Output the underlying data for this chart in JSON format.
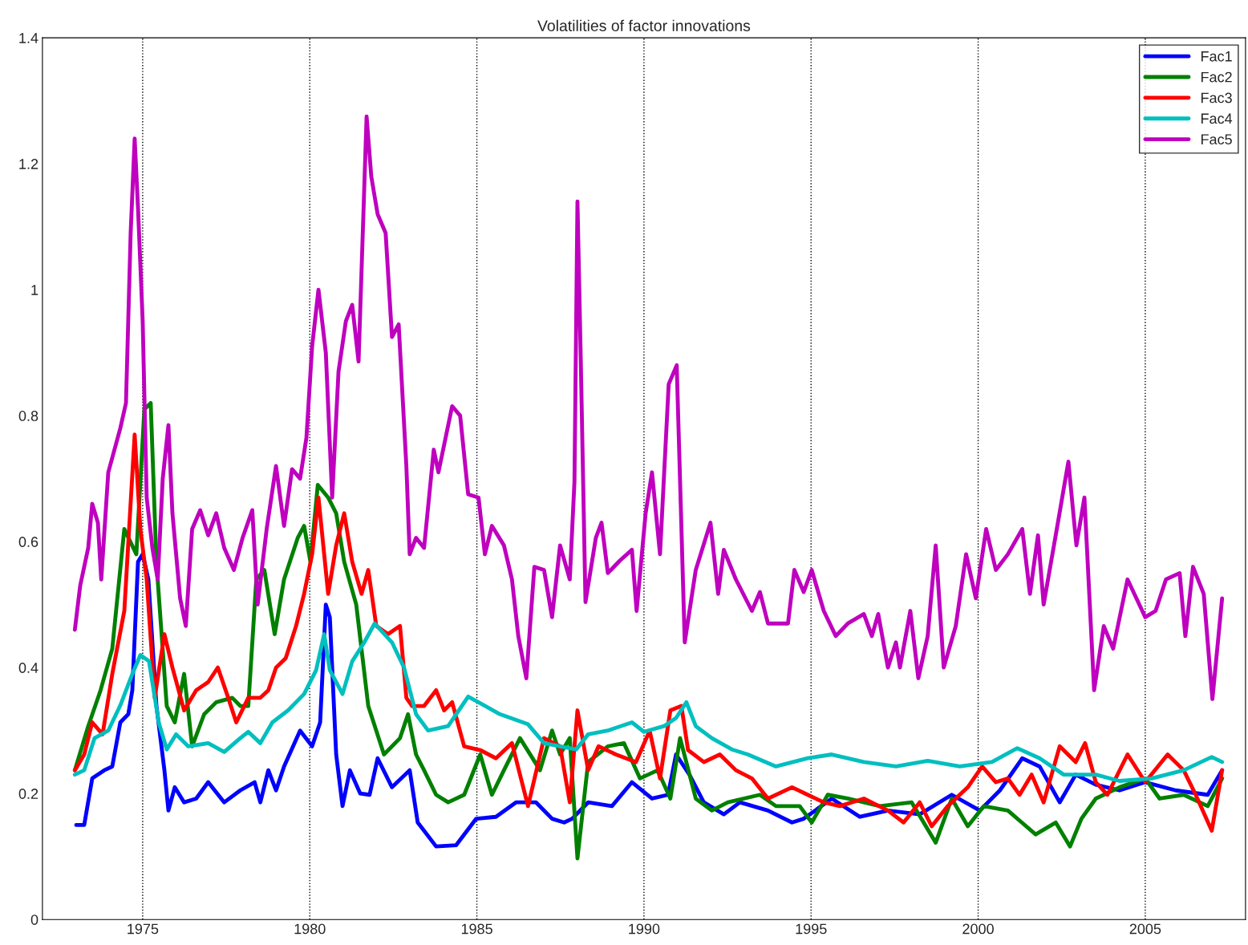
{
  "chart_data": {
    "type": "line",
    "title": "Volatilities of factor innovations",
    "xlim": [
      1972,
      2008
    ],
    "xticks": [
      1975,
      1980,
      1985,
      1990,
      1995,
      2000,
      2005
    ],
    "ylim": [
      0,
      1.4
    ],
    "yticks": [
      0,
      0.2,
      0.4,
      0.6,
      0.8,
      1,
      1.2,
      1.4
    ],
    "grid": "x",
    "legend": "top right",
    "series": [
      {
        "name": "Fac1",
        "color": "#0000ff",
        "x": [
          1973.01,
          1973.25,
          1973.49,
          1973.85,
          1974.09,
          1974.33,
          1974.57,
          1974.69,
          1974.86,
          1975.0,
          1975.17,
          1975.41,
          1975.65,
          1975.77,
          1975.96,
          1976.24,
          1976.6,
          1976.96,
          1977.44,
          1977.92,
          1978.35,
          1978.52,
          1978.76,
          1978.99,
          1979.23,
          1979.71,
          1980.07,
          1980.31,
          1980.48,
          1980.6,
          1980.79,
          1980.98,
          1981.2,
          1981.51,
          1981.79,
          1982.03,
          1982.46,
          1982.99,
          1983.23,
          1983.78,
          1984.38,
          1984.98,
          1985.57,
          1986.17,
          1986.77,
          1987.25,
          1987.61,
          1987.85,
          1988.01,
          1988.33,
          1989.04,
          1989.64,
          1990.24,
          1990.72,
          1990.96,
          1991.12,
          1991.36,
          1991.79,
          1992.39,
          1992.87,
          1993.71,
          1994.43,
          1994.78,
          1995.62,
          1996.46,
          1997.3,
          1998.25,
          1999.21,
          2000.05,
          2000.65,
          2001.32,
          2001.84,
          2002.44,
          2002.92,
          2003.52,
          2004.23,
          2005.0,
          2005.91,
          2006.87,
          2007.3
        ],
        "values": [
          0.15,
          0.15,
          0.224,
          0.237,
          0.243,
          0.313,
          0.326,
          0.364,
          0.568,
          0.58,
          0.54,
          0.34,
          0.237,
          0.173,
          0.21,
          0.186,
          0.192,
          0.218,
          0.186,
          0.205,
          0.218,
          0.186,
          0.237,
          0.205,
          0.243,
          0.3,
          0.275,
          0.313,
          0.5,
          0.48,
          0.262,
          0.18,
          0.237,
          0.2,
          0.198,
          0.256,
          0.21,
          0.237,
          0.154,
          0.116,
          0.118,
          0.16,
          0.163,
          0.186,
          0.186,
          0.16,
          0.154,
          0.16,
          null,
          0.186,
          0.18,
          0.218,
          0.192,
          0.198,
          0.262,
          null,
          0.23,
          0.186,
          0.167,
          0.186,
          0.173,
          0.154,
          0.16,
          0.192,
          0.163,
          0.173,
          0.167,
          0.198,
          0.173,
          0.205,
          0.256,
          0.243,
          0.186,
          0.23,
          0.214,
          0.205,
          0.218,
          0.205,
          0.198,
          0.237
        ]
      },
      {
        "name": "Fac2",
        "color": "#008000",
        "x": [
          1972.97,
          1973.37,
          1973.74,
          1974.09,
          1974.45,
          1974.81,
          1975.05,
          1975.24,
          1975.41,
          1975.72,
          1975.96,
          1976.24,
          1976.48,
          1976.84,
          1977.2,
          1977.68,
          1977.92,
          1978.16,
          1978.4,
          1978.64,
          1978.95,
          1979.23,
          1979.64,
          1979.83,
          1980.02,
          1980.24,
          1980.55,
          1980.79,
          1981.03,
          1981.39,
          1981.75,
          1982.22,
          1982.7,
          1982.94,
          1983.18,
          1983.42,
          1983.78,
          1984.14,
          1984.62,
          1985.1,
          1985.45,
          1985.81,
          1986.29,
          1986.89,
          1987.25,
          1987.49,
          1987.78,
          1988.01,
          1988.33,
          1988.92,
          1989.4,
          1989.88,
          1990.41,
          1990.79,
          1991.08,
          1991.55,
          1992.03,
          1992.51,
          1993.47,
          1993.95,
          1994.66,
          1995.02,
          1995.5,
          1996.1,
          1997.06,
          1998.01,
          1998.73,
          1999.21,
          1999.69,
          2000.17,
          2000.89,
          2001.72,
          2002.32,
          2002.75,
          2003.09,
          2003.52,
          2004.23,
          2005.0,
          2005.43,
          2006.15,
          2006.87,
          2007.3
        ],
        "values": [
          0.237,
          0.307,
          0.364,
          0.43,
          0.62,
          0.58,
          0.81,
          0.82,
          0.568,
          0.339,
          0.313,
          0.39,
          0.275,
          0.326,
          0.345,
          0.352,
          0.339,
          0.339,
          0.54,
          0.555,
          0.453,
          0.54,
          0.606,
          0.625,
          0.568,
          0.69,
          0.67,
          0.645,
          0.568,
          0.5,
          0.339,
          0.262,
          0.288,
          0.326,
          0.262,
          0.237,
          0.198,
          0.186,
          0.198,
          0.262,
          0.198,
          0.237,
          0.288,
          0.237,
          0.3,
          0.262,
          0.288,
          0.097,
          0.25,
          0.275,
          0.28,
          0.224,
          0.237,
          0.192,
          0.288,
          0.192,
          0.173,
          0.186,
          0.198,
          0.18,
          0.18,
          0.154,
          0.198,
          0.192,
          0.18,
          0.186,
          0.122,
          0.192,
          0.148,
          0.18,
          0.173,
          0.135,
          0.154,
          0.116,
          0.16,
          0.192,
          0.21,
          0.224,
          0.192,
          0.198,
          0.18,
          0.224
        ]
      },
      {
        "name": "Fac3",
        "color": "#ff0000",
        "x": [
          1972.97,
          1973.25,
          1973.49,
          1973.8,
          1974.09,
          1974.45,
          1974.76,
          1974.93,
          1975.12,
          1975.36,
          1975.65,
          1975.89,
          1976.24,
          1976.6,
          1976.96,
          1977.25,
          1977.56,
          1977.8,
          1978.16,
          1978.52,
          1978.76,
          1978.99,
          1979.28,
          1979.59,
          1979.83,
          1980.07,
          1980.26,
          1980.55,
          1980.79,
          1981.03,
          1981.27,
          1981.55,
          1981.75,
          1981.99,
          1982.34,
          1982.7,
          1982.89,
          1983.06,
          1983.42,
          1983.78,
          1984.02,
          1984.26,
          1984.62,
          1985.1,
          1985.57,
          1986.05,
          1986.53,
          1987.01,
          1987.49,
          1987.78,
          1988.01,
          1988.33,
          1988.64,
          1989.16,
          1989.76,
          1990.17,
          1990.48,
          1990.79,
          1991.12,
          1991.32,
          1991.79,
          1992.27,
          1992.75,
          1993.23,
          1993.71,
          1994.43,
          1994.9,
          1995.38,
          1995.86,
          1996.58,
          1997.3,
          1997.77,
          1998.25,
          1998.61,
          1999.09,
          1999.69,
          2000.12,
          2000.53,
          2000.89,
          2001.24,
          2001.6,
          2001.96,
          2002.44,
          2002.92,
          2003.2,
          2003.52,
          2003.87,
          2004.47,
          2005.0,
          2005.67,
          2006.15,
          2006.51,
          2006.99,
          2007.3
        ],
        "values": [
          0.237,
          0.262,
          0.313,
          0.294,
          0.39,
          0.49,
          0.77,
          0.62,
          0.54,
          0.352,
          0.453,
          0.4,
          0.332,
          0.364,
          0.377,
          0.4,
          0.352,
          0.313,
          0.352,
          0.352,
          0.364,
          0.4,
          0.415,
          0.466,
          0.517,
          0.58,
          0.67,
          0.517,
          0.594,
          0.645,
          0.568,
          0.517,
          0.555,
          0.466,
          0.453,
          0.466,
          0.352,
          0.339,
          0.339,
          0.364,
          0.332,
          0.345,
          0.275,
          0.269,
          0.256,
          0.28,
          0.18,
          0.288,
          0.275,
          0.186,
          0.332,
          0.237,
          0.275,
          0.262,
          0.25,
          0.3,
          0.224,
          0.332,
          0.339,
          0.269,
          0.25,
          0.262,
          0.237,
          0.224,
          0.192,
          0.21,
          0.198,
          0.186,
          0.18,
          0.192,
          0.173,
          0.154,
          0.186,
          0.148,
          0.18,
          0.21,
          0.243,
          0.218,
          0.224,
          0.198,
          0.23,
          0.186,
          0.275,
          0.25,
          0.28,
          0.218,
          0.198,
          0.262,
          0.218,
          0.262,
          0.237,
          0.198,
          0.141,
          0.237
        ]
      },
      {
        "name": "Fac4",
        "color": "#00bfbf",
        "x": [
          1972.97,
          1973.25,
          1973.56,
          1973.97,
          1974.33,
          1974.69,
          1974.93,
          1975.19,
          1975.48,
          1975.72,
          1976.0,
          1976.36,
          1976.96,
          1977.44,
          1977.92,
          1978.16,
          1978.52,
          1978.88,
          1979.35,
          1979.83,
          1980.19,
          1980.43,
          1980.6,
          1980.98,
          1981.27,
          1981.63,
          1981.94,
          1982.46,
          1982.82,
          1983.18,
          1983.54,
          1984.14,
          1984.74,
          1985.22,
          1985.69,
          1986.53,
          1987.01,
          1987.49,
          1987.97,
          1988.33,
          1988.92,
          1989.64,
          1990.0,
          1990.6,
          1990.96,
          1991.27,
          1991.55,
          1992.03,
          1992.63,
          1993.11,
          1993.95,
          1994.9,
          1995.62,
          1996.58,
          1997.54,
          1998.49,
          1999.45,
          2000.41,
          2001.17,
          2001.84,
          2002.56,
          2003.52,
          2004.23,
          2005.19,
          2006.15,
          2006.99,
          2007.3
        ],
        "values": [
          0.23,
          0.237,
          0.288,
          0.3,
          0.34,
          0.39,
          0.42,
          0.41,
          0.313,
          0.27,
          0.294,
          0.275,
          0.28,
          0.266,
          0.288,
          0.298,
          0.28,
          0.313,
          0.332,
          0.358,
          0.396,
          0.453,
          0.396,
          0.358,
          0.41,
          0.44,
          0.47,
          0.44,
          0.4,
          0.326,
          0.3,
          0.307,
          0.354,
          0.34,
          0.326,
          0.31,
          0.28,
          0.275,
          0.27,
          0.294,
          0.3,
          0.313,
          0.298,
          0.307,
          0.32,
          0.345,
          0.307,
          0.288,
          0.27,
          0.262,
          0.243,
          0.256,
          0.262,
          0.25,
          0.243,
          0.252,
          0.243,
          0.25,
          0.272,
          0.256,
          0.23,
          0.23,
          0.22,
          0.224,
          0.237,
          0.258,
          0.25
        ]
      },
      {
        "name": "Fac5",
        "color": "#bf00bf",
        "x": [
          1972.97,
          1973.13,
          1973.37,
          1973.49,
          1973.66,
          1973.76,
          1973.97,
          1974.33,
          1974.5,
          1974.64,
          1974.76,
          1974.86,
          1975.0,
          1975.12,
          1975.29,
          1975.45,
          1975.6,
          1975.77,
          1975.89,
          1976.12,
          1976.29,
          1976.48,
          1976.72,
          1976.96,
          1977.2,
          1977.44,
          1977.73,
          1977.99,
          1978.28,
          1978.44,
          1978.71,
          1978.99,
          1979.23,
          1979.47,
          1979.71,
          1979.9,
          1980.07,
          1980.26,
          1980.48,
          1980.67,
          1980.86,
          1981.08,
          1981.27,
          1981.46,
          1981.7,
          1981.84,
          1982.03,
          1982.27,
          1982.46,
          1982.66,
          1982.89,
          1982.99,
          1983.18,
          1983.42,
          1983.71,
          1983.85,
          1984.26,
          1984.5,
          1984.74,
          1985.05,
          1985.24,
          1985.45,
          1985.81,
          1986.05,
          1986.24,
          1986.48,
          1986.72,
          1987.01,
          1987.25,
          1987.49,
          1987.78,
          1987.92,
          1988.01,
          1988.11,
          1988.25,
          1988.56,
          1988.73,
          1988.92,
          1989.28,
          1989.64,
          1989.78,
          1990.05,
          1990.24,
          1990.48,
          1990.74,
          1990.98,
          1991.22,
          1991.55,
          1991.99,
          1992.22,
          1992.39,
          1992.75,
          1993.23,
          1993.47,
          1993.71,
          1994.31,
          1994.5,
          1994.78,
          1995.02,
          1995.38,
          1995.74,
          1996.1,
          1996.58,
          1996.82,
          1997.01,
          1997.3,
          1997.54,
          1997.66,
          1997.97,
          1998.21,
          1998.49,
          1998.73,
          1998.97,
          1999.33,
          1999.64,
          1999.93,
          2000.24,
          2000.53,
          2000.89,
          2001.32,
          2001.55,
          2001.79,
          2001.96,
          2002.37,
          2002.7,
          2002.94,
          2003.18,
          2003.47,
          2003.76,
          2004.04,
          2004.47,
          2005.0,
          2005.31,
          2005.62,
          2006.03,
          2006.2,
          2006.43,
          2006.75,
          2007.01,
          2007.3
        ],
        "values": [
          0.46,
          0.53,
          0.59,
          0.66,
          0.63,
          0.54,
          0.71,
          0.78,
          0.82,
          1.09,
          1.24,
          1.13,
          0.95,
          0.67,
          0.59,
          0.54,
          0.7,
          0.785,
          0.645,
          0.51,
          0.466,
          0.62,
          0.65,
          0.61,
          0.645,
          0.59,
          0.555,
          0.606,
          0.65,
          0.5,
          0.62,
          0.72,
          0.625,
          0.715,
          0.7,
          0.765,
          0.91,
          1.0,
          0.9,
          0.67,
          0.87,
          0.95,
          0.976,
          0.886,
          1.275,
          1.18,
          1.12,
          1.09,
          0.925,
          0.945,
          0.72,
          0.58,
          0.606,
          0.59,
          0.746,
          0.71,
          0.815,
          0.8,
          0.675,
          0.67,
          0.58,
          0.625,
          0.594,
          0.54,
          0.45,
          0.383,
          0.56,
          0.555,
          0.48,
          0.594,
          0.54,
          0.695,
          1.14,
          0.886,
          0.504,
          0.606,
          0.63,
          0.55,
          0.57,
          0.587,
          0.49,
          0.645,
          0.71,
          0.58,
          0.85,
          0.88,
          0.44,
          0.555,
          0.63,
          0.517,
          0.587,
          0.54,
          0.49,
          0.52,
          0.47,
          0.47,
          0.555,
          0.52,
          0.555,
          0.49,
          0.45,
          0.47,
          0.485,
          0.45,
          0.485,
          0.4,
          0.44,
          0.4,
          0.49,
          0.383,
          0.45,
          0.594,
          0.4,
          0.466,
          0.58,
          0.51,
          0.62,
          0.555,
          0.58,
          0.62,
          0.517,
          0.61,
          0.5,
          0.625,
          0.727,
          0.594,
          0.67,
          0.364,
          0.466,
          0.43,
          0.54,
          0.48,
          0.49,
          0.54,
          0.55,
          0.45,
          0.56,
          0.517,
          0.35,
          0.51
        ]
      }
    ]
  }
}
